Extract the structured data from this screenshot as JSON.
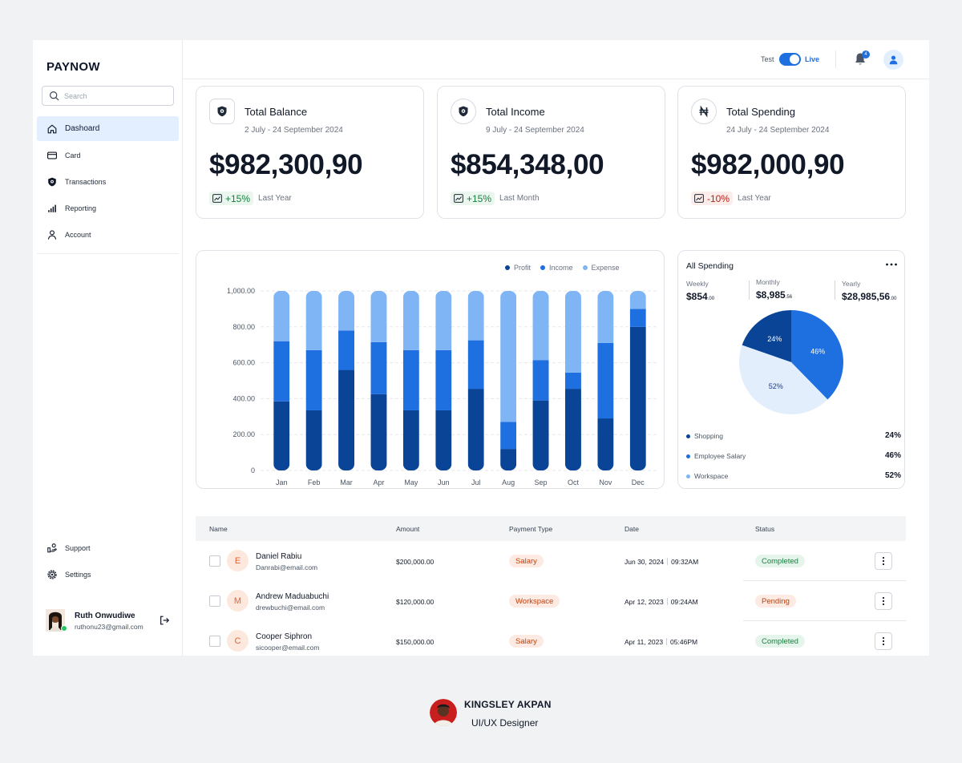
{
  "brand": "PAYNOW",
  "search": {
    "placeholder": "Search"
  },
  "nav": [
    {
      "label": "Dashoard",
      "icon": "home-icon",
      "active": true
    },
    {
      "label": "Card",
      "icon": "card-icon"
    },
    {
      "label": "Transactions",
      "icon": "transactions-icon"
    },
    {
      "label": "Reporting",
      "icon": "bar-chart-icon"
    },
    {
      "label": "Account",
      "icon": "user-icon"
    }
  ],
  "bottom_nav": [
    {
      "label": "Support",
      "icon": "support-icon"
    },
    {
      "label": "Settings",
      "icon": "settings-icon"
    }
  ],
  "user": {
    "name": "Ruth Onwudiwe",
    "email": "ruthonu23@gmail.com"
  },
  "topbar": {
    "mode_test": "Test",
    "mode_live": "Live",
    "notifications": "4"
  },
  "cards": [
    {
      "title": "Total Balance",
      "date": "2 July - 24 September 2024",
      "amount": "$982,300,90",
      "change": "+15%",
      "period": "Last Year",
      "trend": "up",
      "icon": "shield-icon"
    },
    {
      "title": "Total Income",
      "date": "9 July - 24 September 2024",
      "amount": "$854,348,00",
      "change": "+15%",
      "period": "Last Month",
      "trend": "up",
      "icon": "shield-icon"
    },
    {
      "title": "Total Spending",
      "date": "24 July - 24 September 2024",
      "amount": "$982,000,90",
      "change": "-10%",
      "period": "Last Year",
      "trend": "down",
      "icon": "naira-icon"
    }
  ],
  "colors": {
    "profit": "#0a4497",
    "income": "#1e6fe0",
    "expense": "#7fb5f5",
    "pie_light": "#e3eefc"
  },
  "chart_data": [
    {
      "type": "bar",
      "stacked": true,
      "categories": [
        "Jan",
        "Feb",
        "Mar",
        "Apr",
        "May",
        "Jun",
        "Jul",
        "Aug",
        "Sep",
        "Oct",
        "Nov",
        "Dec"
      ],
      "ylim": [
        0,
        1000
      ],
      "yticks": [
        "1,000.00",
        "800.00",
        "600.00",
        "400.00",
        "200.00",
        "0"
      ],
      "ytick_values": [
        1000,
        800,
        600,
        400,
        200,
        0
      ],
      "legend_position": "top-right",
      "series": [
        {
          "name": "Profit",
          "values": [
            385,
            335,
            560,
            425,
            335,
            335,
            455,
            120,
            390,
            455,
            290,
            800
          ]
        },
        {
          "name": "Income",
          "values": [
            335,
            335,
            220,
            290,
            335,
            335,
            270,
            150,
            225,
            90,
            420,
            100
          ]
        },
        {
          "name": "Expense",
          "values": [
            280,
            330,
            220,
            285,
            330,
            330,
            275,
            730,
            385,
            455,
            290,
            100
          ]
        }
      ]
    },
    {
      "type": "pie",
      "title": "All Spending",
      "slices": [
        {
          "name": "Shopping",
          "value": 24,
          "label": "24%"
        },
        {
          "name": "Employee Salary",
          "value": 46,
          "label": "46%"
        },
        {
          "name": "Workspace",
          "value": 52,
          "label": "52%"
        }
      ]
    }
  ],
  "spending": {
    "weekly_label": "Weekly",
    "weekly_value": "$854",
    "weekly_cents": ".00",
    "monthly_label": "Monthly",
    "monthly_value": "$8,985",
    "monthly_cents": ".56",
    "yearly_label": "Yearly",
    "yearly_value": "$28,985,56",
    "yearly_cents": ".00"
  },
  "table": {
    "headers": {
      "name": "Name",
      "amount": "Amount",
      "type": "Payment Type",
      "date": "Date",
      "status": "Status"
    },
    "rows": [
      {
        "initial": "E",
        "name": "Daniel Rabiu",
        "email": "Danrabi@email.com",
        "amount": "$200,000.00",
        "type": "Salary",
        "date": "Jun 30, 2024",
        "time": "09:32AM",
        "status": "Completed",
        "status_kind": "ok"
      },
      {
        "initial": "M",
        "name": "Andrew Maduabuchi",
        "email": "drewbuchi@email.com",
        "amount": "$120,000.00",
        "type": "Workspace",
        "date": "Apr 12, 2023",
        "time": "09:24AM",
        "status": "Pending",
        "status_kind": "pend"
      },
      {
        "initial": "C",
        "name": "Cooper Siphron",
        "email": "sicooper@email.com",
        "amount": "$150,000.00",
        "type": "Salary",
        "date": "Apr 11, 2023",
        "time": "05:46PM",
        "status": "Completed",
        "status_kind": "ok"
      }
    ]
  },
  "credit": {
    "name": "KINGSLEY AKPAN",
    "role": "UI/UX Designer"
  }
}
